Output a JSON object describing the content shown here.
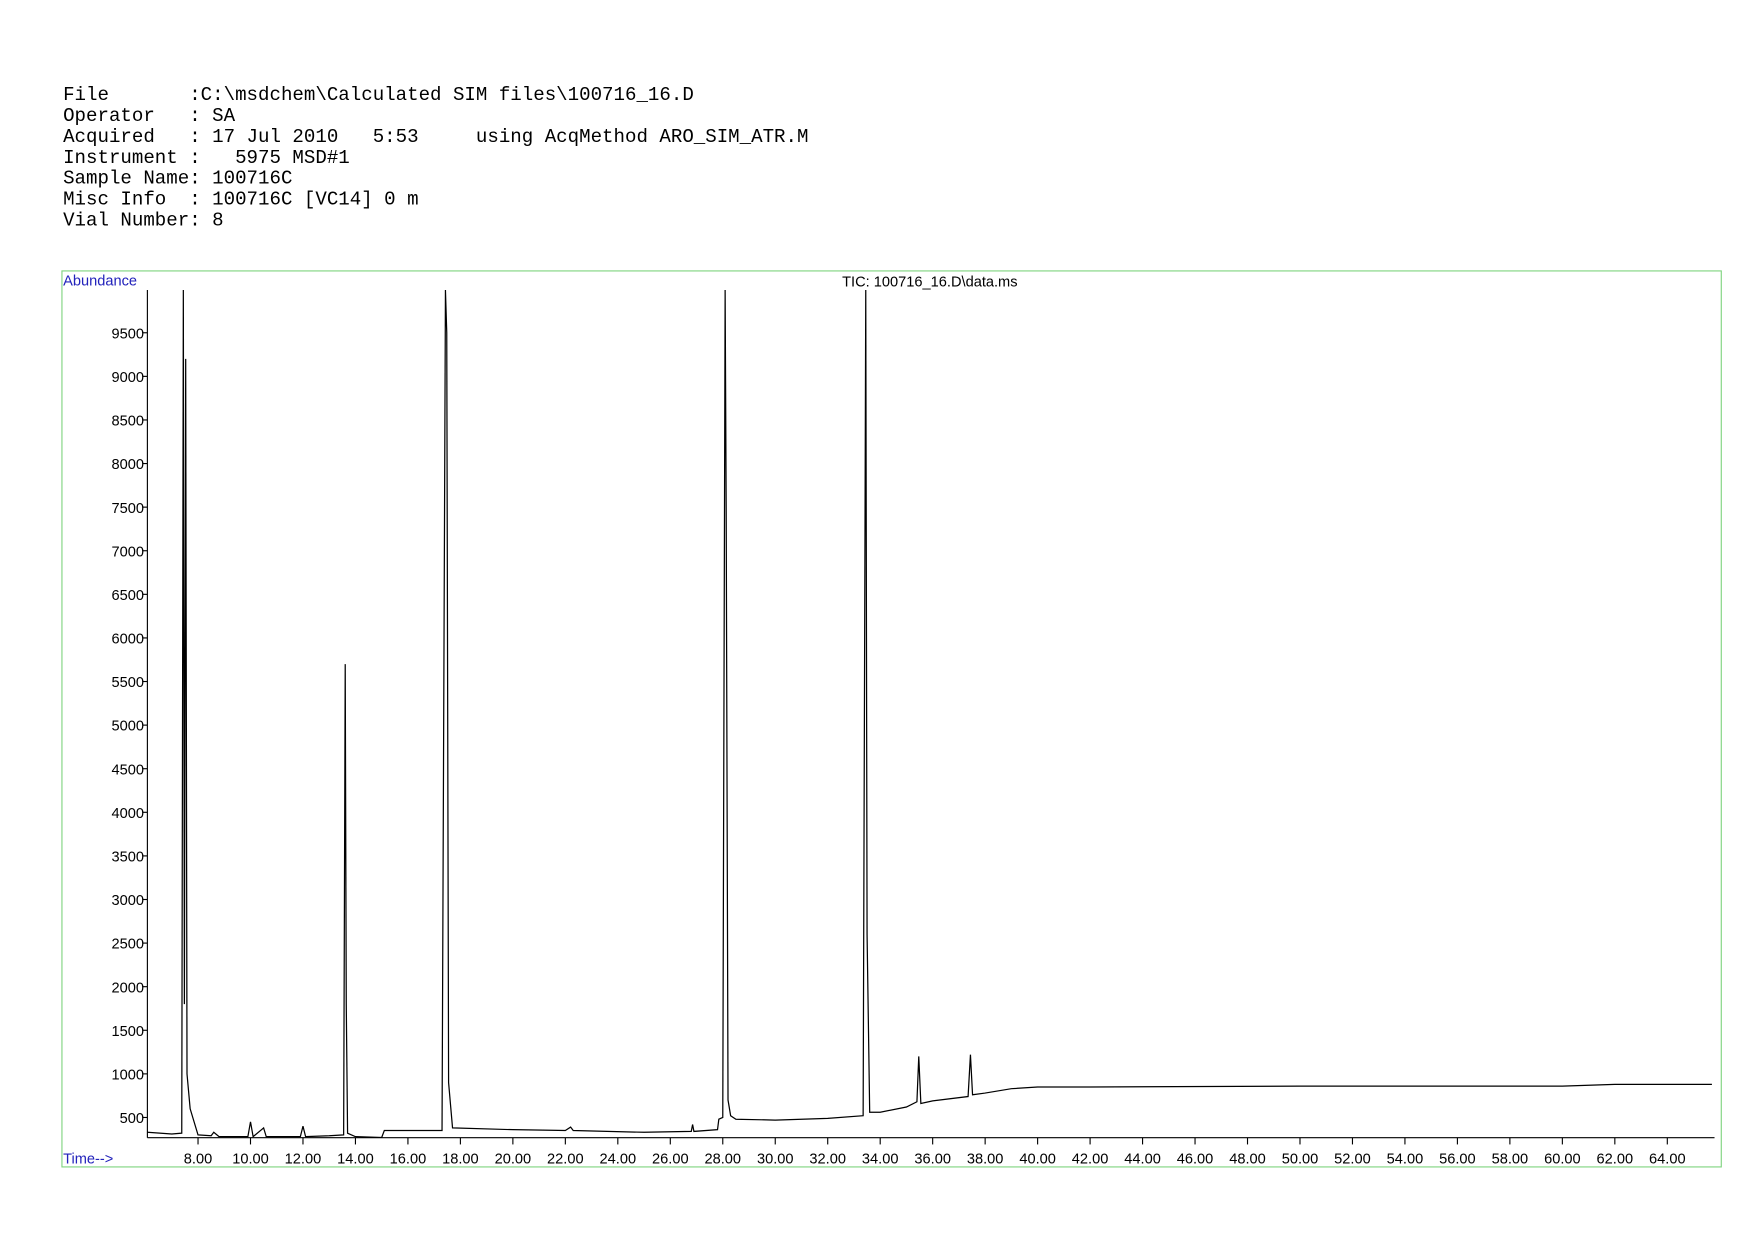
{
  "header": {
    "lines": [
      "File       :C:\\msdchem\\Calculated SIM files\\100716_16.D",
      "Operator   : SA",
      "Acquired   : 17 Jul 2010   5:53     using AcqMethod ARO_SIM_ATR.M",
      "Instrument :   5975 MSD#1",
      "Sample Name: 100716C",
      "Misc Info  : 100716C [VC14] 0 m",
      "Vial Number: 8"
    ]
  },
  "chart_data": {
    "type": "line",
    "title": "TIC: 100716_16.D\\data.ms",
    "y_label": "Abundance",
    "x_label": "Time-->",
    "xlim": [
      6.07,
      65.8
    ],
    "ylim": [
      268,
      9990
    ],
    "xticks": [
      {
        "value": 8,
        "label": "8.00"
      },
      {
        "value": 10,
        "label": "10.00"
      },
      {
        "value": 12,
        "label": "12.00"
      },
      {
        "value": 14,
        "label": "14.00"
      },
      {
        "value": 16,
        "label": "16.00"
      },
      {
        "value": 18,
        "label": "18.00"
      },
      {
        "value": 20,
        "label": "20.00"
      },
      {
        "value": 22,
        "label": "22.00"
      },
      {
        "value": 24,
        "label": "24.00"
      },
      {
        "value": 26,
        "label": "26.00"
      },
      {
        "value": 28,
        "label": "28.00"
      },
      {
        "value": 30,
        "label": "30.00"
      },
      {
        "value": 32,
        "label": "32.00"
      },
      {
        "value": 34,
        "label": "34.00"
      },
      {
        "value": 36,
        "label": "36.00"
      },
      {
        "value": 38,
        "label": "38.00"
      },
      {
        "value": 40,
        "label": "40.00"
      },
      {
        "value": 42,
        "label": "42.00"
      },
      {
        "value": 44,
        "label": "44.00"
      },
      {
        "value": 46,
        "label": "46.00"
      },
      {
        "value": 48,
        "label": "48.00"
      },
      {
        "value": 50,
        "label": "50.00"
      },
      {
        "value": 52,
        "label": "52.00"
      },
      {
        "value": 54,
        "label": "54.00"
      },
      {
        "value": 56,
        "label": "56.00"
      },
      {
        "value": 58,
        "label": "58.00"
      },
      {
        "value": 60,
        "label": "60.00"
      },
      {
        "value": 62,
        "label": "62.00"
      },
      {
        "value": 64,
        "label": "64.00"
      }
    ],
    "yticks": [
      500,
      1000,
      1500,
      2000,
      2500,
      3000,
      3500,
      4000,
      4500,
      5000,
      5500,
      6000,
      6500,
      7000,
      7500,
      8000,
      8500,
      9000,
      9500
    ],
    "series": [
      {
        "color": "#000000",
        "x": [
          6.07,
          7.0,
          7.38,
          7.44,
          7.48,
          7.53,
          7.58,
          7.7,
          8.0,
          8.5,
          8.6,
          8.8,
          9.9,
          10.0,
          10.1,
          10.5,
          10.6,
          11.9,
          12.0,
          12.1,
          13.0,
          13.55,
          13.61,
          13.65,
          13.7,
          14.0,
          15.0,
          15.1,
          17.3,
          17.43,
          17.48,
          17.55,
          17.7,
          20,
          22,
          22.2,
          22.3,
          25,
          26.8,
          26.85,
          26.9,
          27.8,
          27.85,
          28.0,
          28.09,
          28.13,
          28.2,
          28.3,
          28.5,
          30,
          32,
          33.35,
          33.45,
          33.5,
          33.6,
          34,
          35,
          35.4,
          35.47,
          35.55,
          36,
          37.35,
          37.44,
          37.52,
          38,
          39,
          40,
          42,
          50,
          56,
          60,
          62,
          65.7
        ],
        "values": [
          330,
          310,
          320,
          9990,
          1800,
          9200,
          1000,
          600,
          300,
          290,
          330,
          280,
          280,
          450,
          280,
          380,
          280,
          280,
          400,
          280,
          290,
          300,
          5700,
          1800,
          320,
          280,
          270,
          350,
          350,
          9990,
          9500,
          900,
          380,
          360,
          350,
          390,
          350,
          330,
          340,
          420,
          340,
          360,
          480,
          500,
          9990,
          7500,
          700,
          520,
          480,
          470,
          490,
          520,
          9990,
          2600,
          560,
          560,
          620,
          680,
          1200,
          660,
          690,
          740,
          1220,
          760,
          780,
          830,
          850,
          850,
          860,
          860,
          860,
          880,
          880
        ]
      }
    ]
  }
}
